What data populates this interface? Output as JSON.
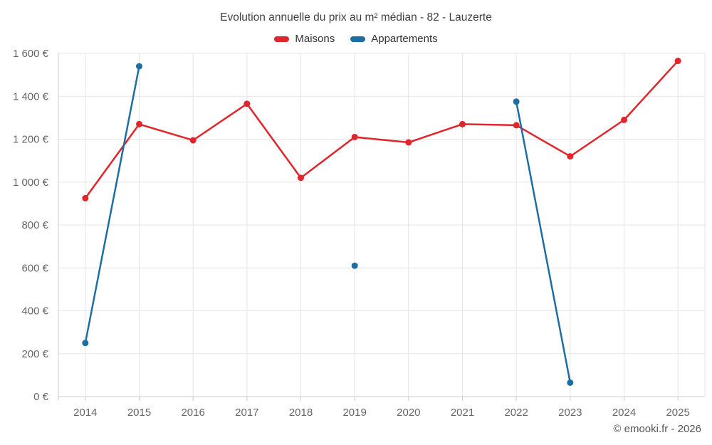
{
  "header": {
    "title": "Evolution annuelle du prix au m² médian - 82 - Lauzerte"
  },
  "footer": {
    "copyright": "© emooki.fr - 2026"
  },
  "colors": {
    "maisons": "#e0252b",
    "appartements": "#1d6fa3",
    "gridline": "#e6e6e6",
    "axis_line": "#cccccc",
    "axis_text": "#666666",
    "title_text": "#3f3f3f",
    "background": "#ffffff"
  },
  "chart_data": {
    "type": "line",
    "title": "Evolution annuelle du prix au m² médian - 82 - Lauzerte",
    "xlabel": "",
    "ylabel": "",
    "categories": [
      "2014",
      "2015",
      "2016",
      "2017",
      "2018",
      "2019",
      "2020",
      "2021",
      "2022",
      "2023",
      "2024",
      "2025"
    ],
    "series": [
      {
        "name": "Maisons",
        "color": "#e0252b",
        "values": [
          925,
          1270,
          1195,
          1365,
          1020,
          1210,
          1185,
          1270,
          1265,
          1120,
          1290,
          1565
        ]
      },
      {
        "name": "Appartements",
        "color": "#1d6fa3",
        "values": [
          250,
          1540,
          null,
          null,
          null,
          610,
          null,
          null,
          1375,
          65,
          null,
          null
        ]
      }
    ],
    "ylim": [
      0,
      1600
    ],
    "ytick_step": 200,
    "ytick_labels": [
      "0 €",
      "200 €",
      "400 €",
      "600 €",
      "800 €",
      "1 000 €",
      "1 200 €",
      "1 400 €",
      "1 600 €"
    ],
    "grid": true,
    "legend_position": "top",
    "marker": "circle"
  }
}
